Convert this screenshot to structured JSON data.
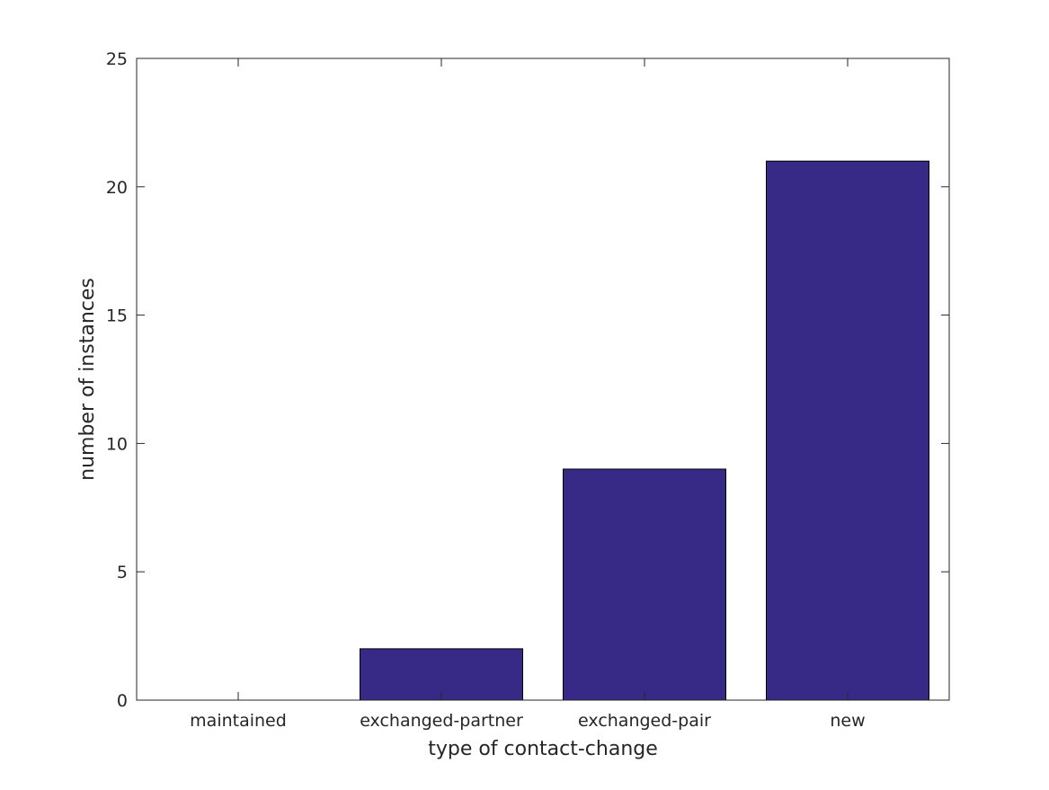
{
  "chart_data": {
    "type": "bar",
    "categories": [
      "maintained",
      "exchanged-partner",
      "exchanged-pair",
      "new"
    ],
    "values": [
      0,
      2,
      9,
      21
    ],
    "title": "",
    "xlabel": "type of contact-change",
    "ylabel": "number of instances",
    "ylim": [
      0,
      25
    ],
    "yticks": [
      0,
      5,
      10,
      15,
      20,
      25
    ],
    "yticks_labels": [
      "0",
      "5",
      "10",
      "15",
      "20",
      "25"
    ],
    "grid": false,
    "bar_color": "#372a86",
    "axis_color": "#262626"
  }
}
